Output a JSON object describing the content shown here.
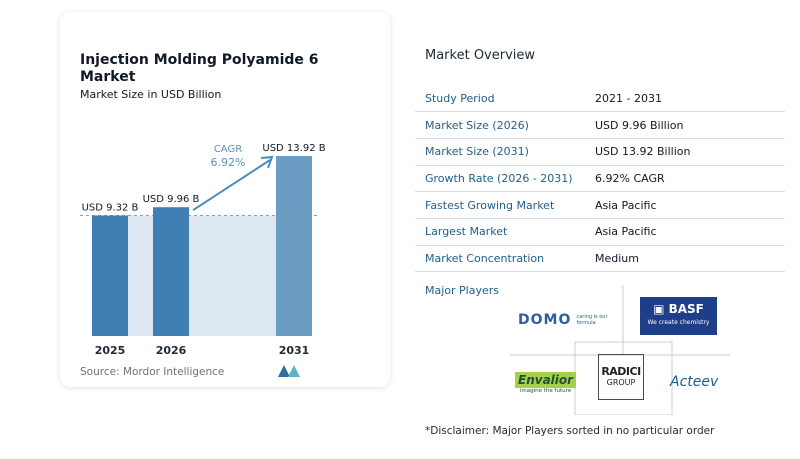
{
  "left_card": {
    "title": "Injection Molding Polyamide 6 Market",
    "subtitle": "Market Size in USD Billion",
    "source": "Source:  Mordor Intelligence"
  },
  "chart_data": {
    "type": "bar",
    "categories": [
      "2025",
      "2026",
      "2031"
    ],
    "values": [
      9.32,
      9.96,
      13.92
    ],
    "data_labels": [
      "USD 9.32 B",
      "USD 9.96 B",
      "USD 13.92 B"
    ],
    "annotation": {
      "label": "CAGR",
      "value": "6.92%"
    },
    "ylim": [
      0,
      13.92
    ],
    "grid": false,
    "colors": {
      "bar_2025": "#3f7fb3",
      "bar_2026": "#3f7fb3",
      "bar_2031": "#6a9cc4",
      "band": "#dde8f2",
      "arrow": "#4b8bbf",
      "cagr_text": "#5c93bf"
    }
  },
  "overview": {
    "title": "Market Overview",
    "rows": [
      {
        "label": "Study Period",
        "value": "2021 - 2031"
      },
      {
        "label": "Market Size (2026)",
        "value": "USD 9.96 Billion"
      },
      {
        "label": "Market Size (2031)",
        "value": "USD 13.92 Billion"
      },
      {
        "label": "Growth Rate (2026 - 2031)",
        "value": "6.92% CAGR"
      },
      {
        "label": "Fastest Growing Market",
        "value": "Asia Pacific"
      },
      {
        "label": "Largest Market",
        "value": "Asia Pacific"
      },
      {
        "label": "Market Concentration",
        "value": "Medium"
      }
    ]
  },
  "major_players": {
    "title": "Major Players",
    "logos": {
      "domo": {
        "name": "DOMO",
        "tagline": "caring is our formula"
      },
      "basf": {
        "name": "BASF",
        "tagline": "We create chemistry"
      },
      "envalior": {
        "name": "Envalior",
        "tagline": "imagine the future"
      },
      "radici": {
        "name": "RADICI",
        "sub": "GROUP"
      },
      "acteev": {
        "name": "Acteev"
      }
    }
  },
  "disclaimer": "*Disclaimer: Major Players sorted in no particular order"
}
